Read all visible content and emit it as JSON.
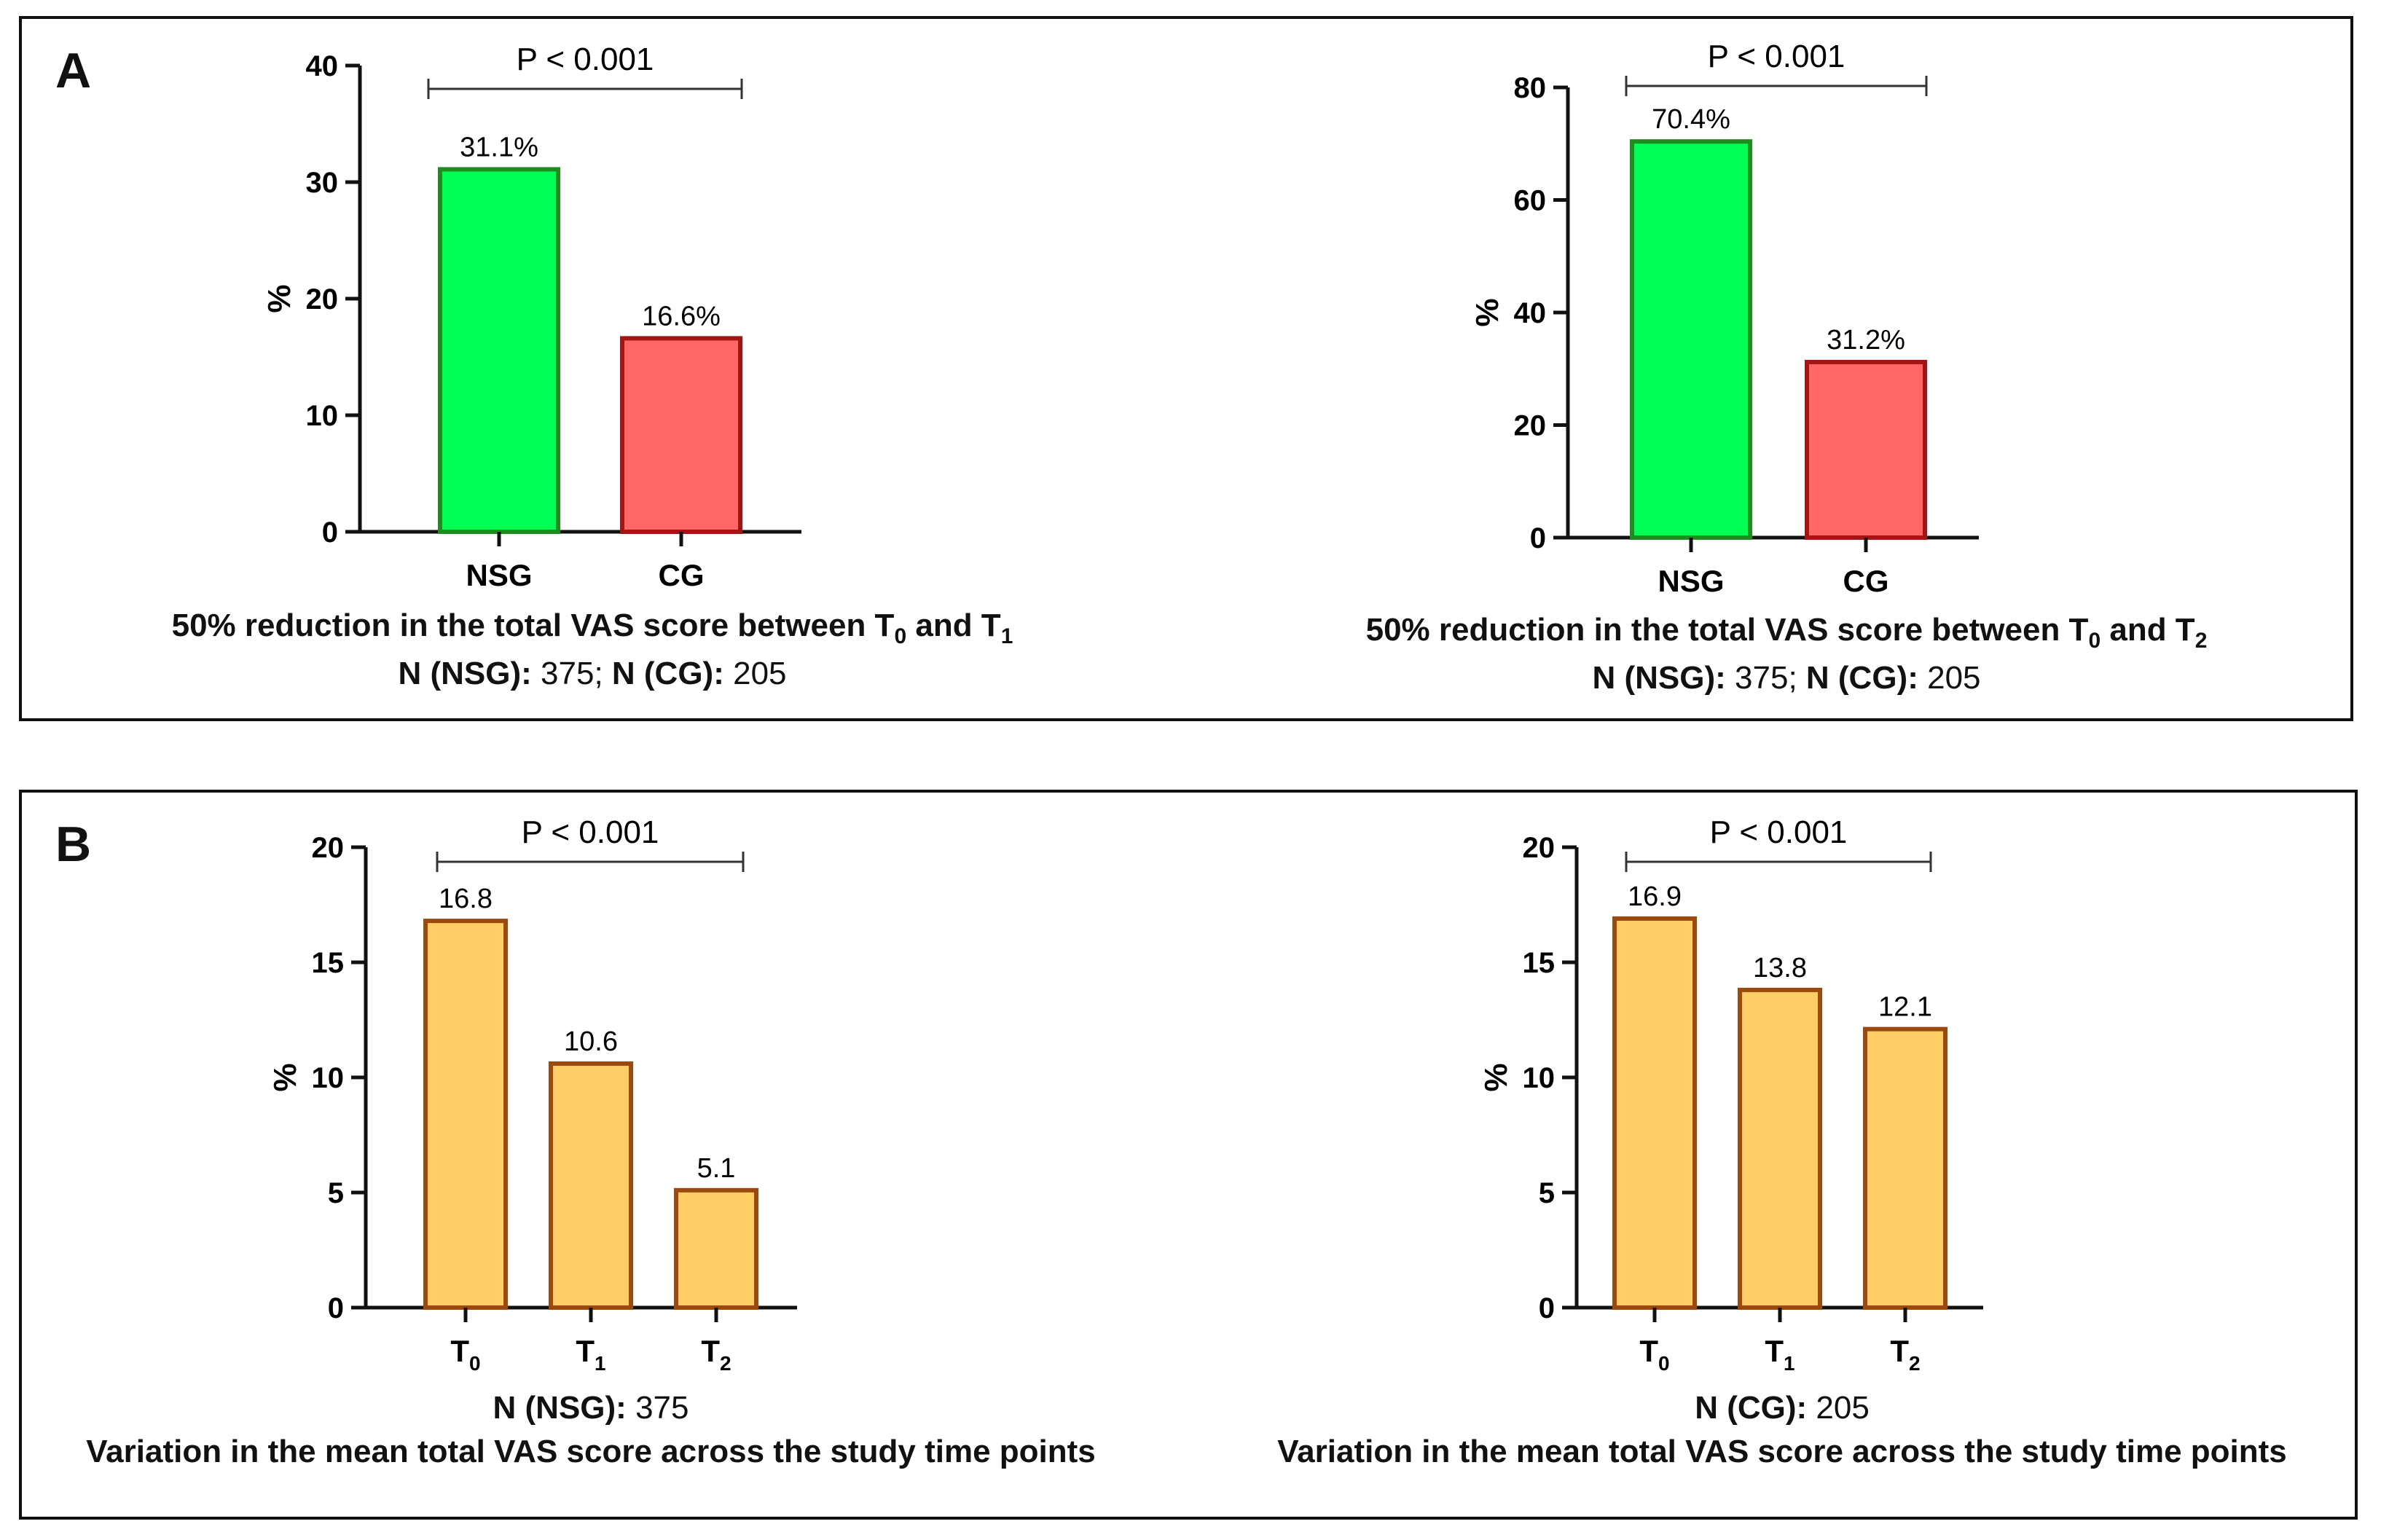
{
  "panels": [
    {
      "letter": "A",
      "charts": [
        {
          "caption_main": "50% reduction in the total VAS score between T",
          "caption_sub0": "0",
          "caption_and": " and T",
          "caption_sub1": "1",
          "n_label1": "N (NSG):",
          "n_value1": "375",
          "n_sep": ";",
          "n_label2": "N (CG):",
          "n_value2": "205"
        },
        {
          "caption_main": "50% reduction in the total VAS score between T",
          "caption_sub0": "0",
          "caption_and": " and T",
          "caption_sub1": "2",
          "n_label1": "N (NSG):",
          "n_value1": "375",
          "n_sep": ";",
          "n_label2": "N (CG):",
          "n_value2": "205"
        }
      ]
    },
    {
      "letter": "B",
      "charts": [
        {
          "n_label1": "N (NSG):",
          "n_value1": "375",
          "caption_line2": "Variation in the mean total VAS score across the study time points"
        },
        {
          "n_label1": "N (CG):",
          "n_value1": "205",
          "caption_line2": "Variation in the mean total VAS score across the study time points"
        }
      ]
    }
  ],
  "chart_data": [
    {
      "type": "bar",
      "panel": "A",
      "categories": [
        "NSG",
        "CG"
      ],
      "values": [
        31.1,
        16.6
      ],
      "value_labels": [
        "31.1%",
        "16.6%"
      ],
      "colors": [
        "#00FF55",
        "#FF6666"
      ],
      "edge_colors": [
        "#1E8C1E",
        "#A31515"
      ],
      "ylabel": "%",
      "ylim": [
        0,
        40
      ],
      "yticks": [
        0,
        10,
        20,
        30,
        40
      ],
      "significance": "P < 0.001"
    },
    {
      "type": "bar",
      "panel": "A",
      "categories": [
        "NSG",
        "CG"
      ],
      "values": [
        70.4,
        31.2
      ],
      "value_labels": [
        "70.4%",
        "31.2%"
      ],
      "colors": [
        "#00FF55",
        "#FF6666"
      ],
      "edge_colors": [
        "#1E8C1E",
        "#A31515"
      ],
      "ylabel": "%",
      "ylim": [
        0,
        80
      ],
      "yticks": [
        0,
        20,
        40,
        60,
        80
      ],
      "significance": "P < 0.001"
    },
    {
      "type": "bar",
      "panel": "B",
      "categories": [
        "T",
        "T",
        "T"
      ],
      "category_subscripts": [
        "0",
        "1",
        "2"
      ],
      "values": [
        16.8,
        10.6,
        5.1
      ],
      "value_labels": [
        "16.8",
        "10.6",
        "5.1"
      ],
      "colors": [
        "#FFCC66",
        "#FFCC66",
        "#FFCC66"
      ],
      "edge_colors": [
        "#9A4A0E",
        "#9A4A0E",
        "#9A4A0E"
      ],
      "ylabel": "%",
      "ylim": [
        0,
        20
      ],
      "yticks": [
        0,
        5,
        10,
        15,
        20
      ],
      "significance": "P < 0.001"
    },
    {
      "type": "bar",
      "panel": "B",
      "categories": [
        "T",
        "T",
        "T"
      ],
      "category_subscripts": [
        "0",
        "1",
        "2"
      ],
      "values": [
        16.9,
        13.8,
        12.1
      ],
      "value_labels": [
        "16.9",
        "13.8",
        "12.1"
      ],
      "colors": [
        "#FFCC66",
        "#FFCC66",
        "#FFCC66"
      ],
      "edge_colors": [
        "#9A4A0E",
        "#9A4A0E",
        "#9A4A0E"
      ],
      "ylabel": "%",
      "ylim": [
        0,
        20
      ],
      "yticks": [
        0,
        5,
        10,
        15,
        20
      ],
      "significance": "P < 0.001"
    }
  ]
}
